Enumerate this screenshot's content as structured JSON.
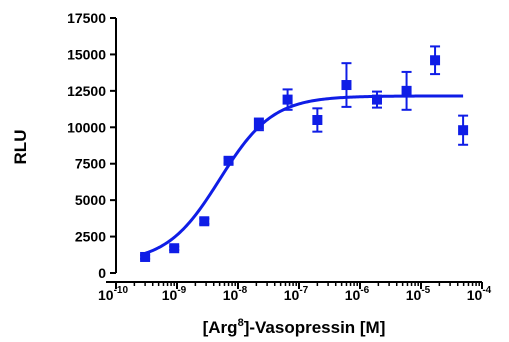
{
  "chart_data": {
    "type": "scatter",
    "xscale": "log",
    "xlabel_parts": {
      "prefix": "[Arg",
      "superscript": "8",
      "suffix": "]-Vasopressin [M]"
    },
    "ylabel": "RLU",
    "xlim": [
      1e-10,
      0.0001
    ],
    "ylim": [
      0,
      17500
    ],
    "x_tick_exponents": [
      "-10",
      "-9",
      "-8",
      "-7",
      "-6",
      "-5",
      "-4"
    ],
    "x_tick_base": "10",
    "y_ticks": [
      "0",
      "2500",
      "5000",
      "7500",
      "10000",
      "12500",
      "15000",
      "17500"
    ],
    "grid": false,
    "series": [
      {
        "points": [
          {
            "x": 3e-10,
            "y": 1100,
            "err": 120
          },
          {
            "x": 9e-10,
            "y": 1700,
            "err": 120
          },
          {
            "x": 2.8e-09,
            "y": 3550,
            "err": 180
          },
          {
            "x": 7e-09,
            "y": 7700,
            "err": 180
          },
          {
            "x": 2.2e-08,
            "y": 10200,
            "err": 400
          },
          {
            "x": 6.5e-08,
            "y": 11900,
            "err": 700
          },
          {
            "x": 2e-07,
            "y": 10500,
            "err": 800
          },
          {
            "x": 6e-07,
            "y": 12900,
            "err": 1500
          },
          {
            "x": 1.9e-06,
            "y": 11900,
            "err": 550
          },
          {
            "x": 5.8e-06,
            "y": 12500,
            "err": 1300
          },
          {
            "x": 1.7e-05,
            "y": 14600,
            "err": 950
          },
          {
            "x": 4.9e-05,
            "y": 9800,
            "err": 1000
          }
        ],
        "fit": {
          "type": "sigmoid",
          "bottom": 700,
          "top": 12150,
          "logEC50": -8.3,
          "hill": 1.0,
          "xrange": [
            3e-10,
            4.9e-05
          ]
        }
      }
    ],
    "color": "#0f1de6"
  }
}
